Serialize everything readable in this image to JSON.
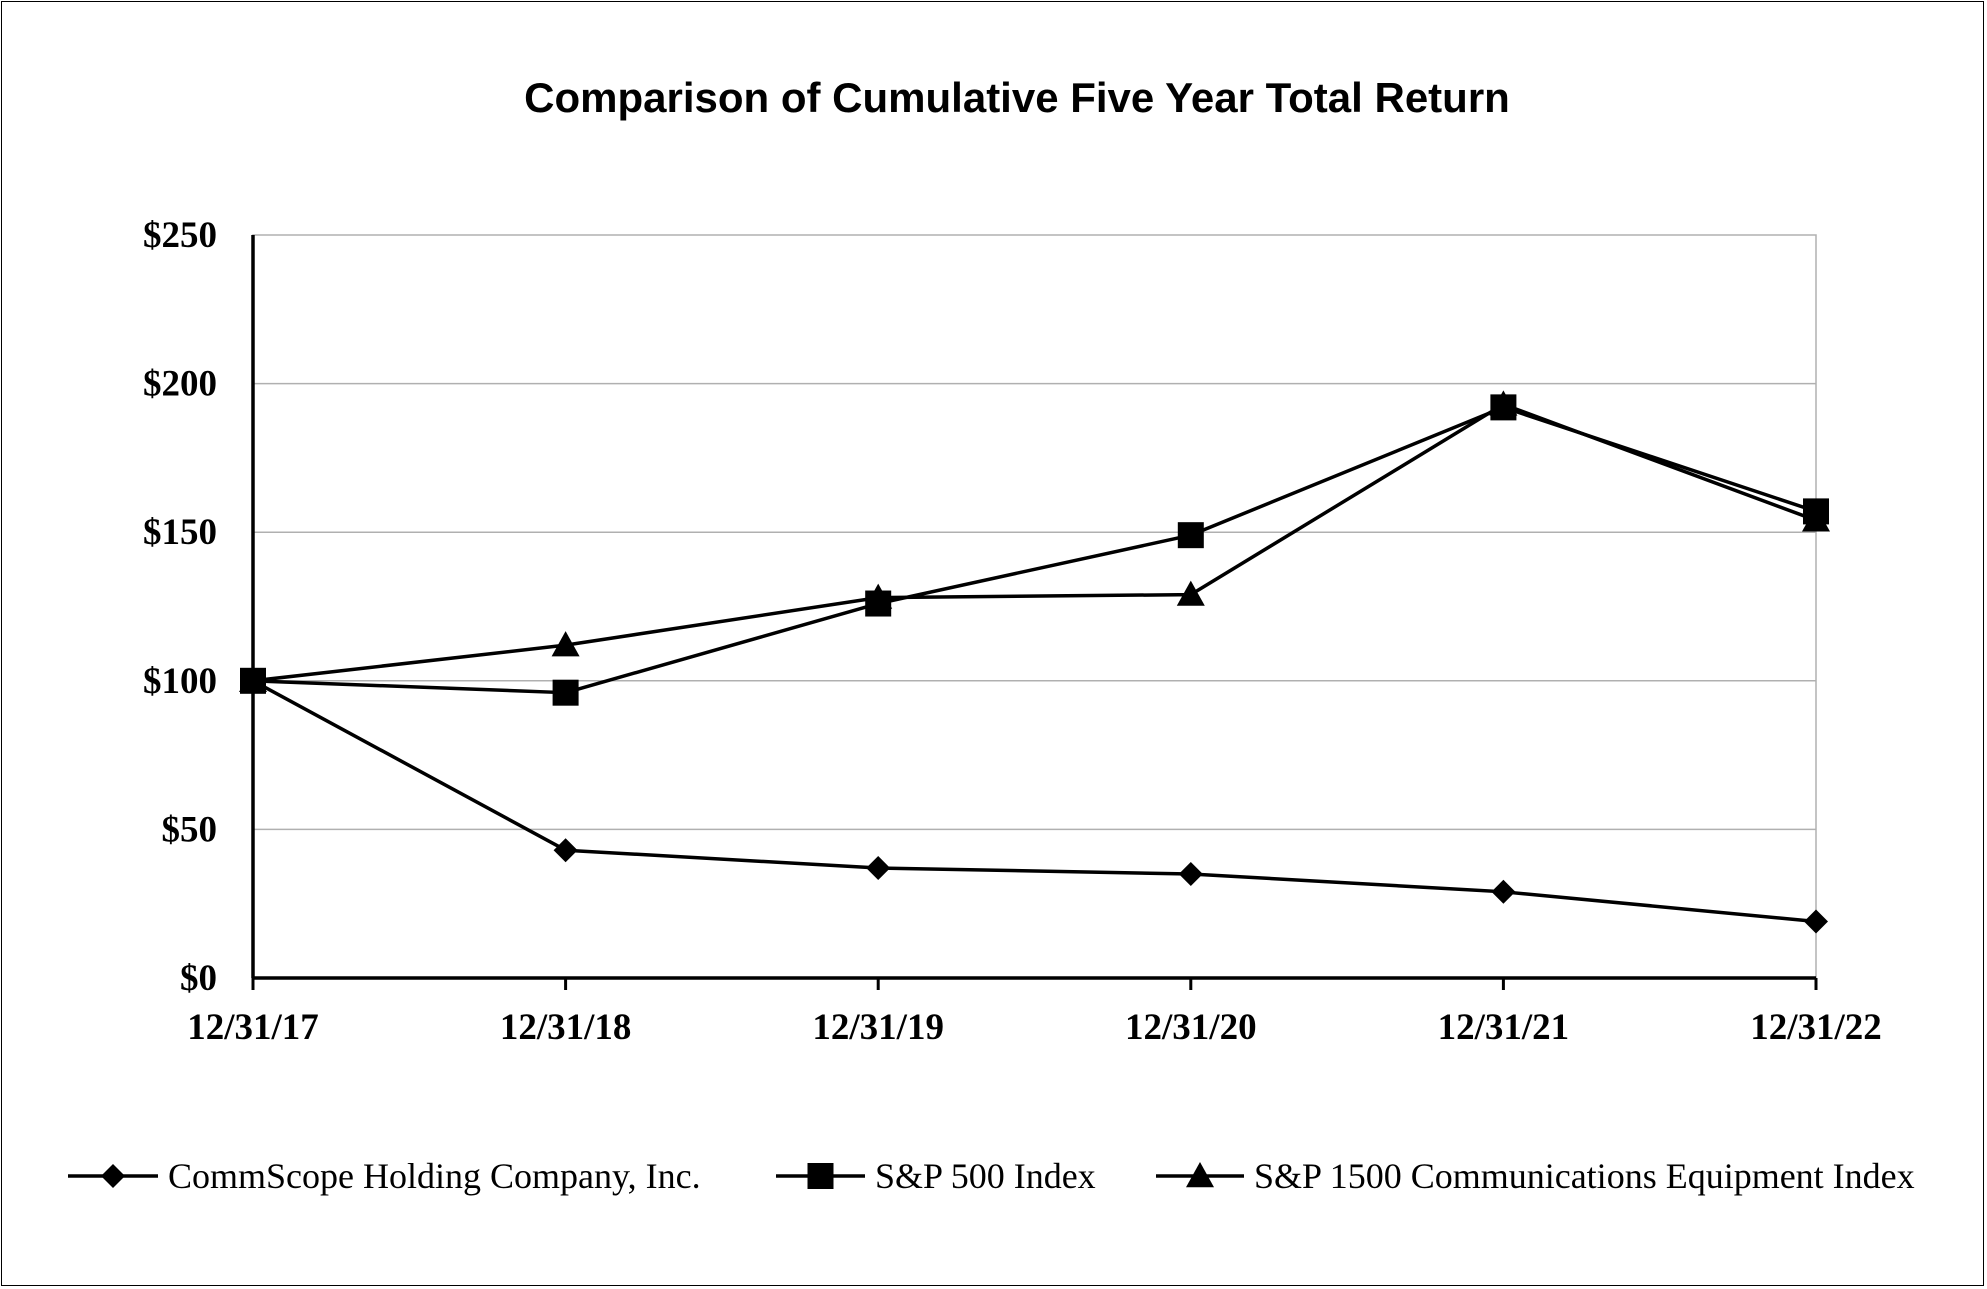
{
  "chart_data": {
    "type": "line",
    "title": "Comparison of Cumulative Five Year Total Return",
    "xlabel": "",
    "ylabel": "",
    "categories": [
      "12/31/17",
      "12/31/18",
      "12/31/19",
      "12/31/20",
      "12/31/21",
      "12/31/22"
    ],
    "y_ticks": [
      "$0",
      "$50",
      "$100",
      "$150",
      "$200",
      "$250"
    ],
    "ylim": [
      0,
      250
    ],
    "grid": true,
    "legend_position": "bottom",
    "series": [
      {
        "name": "CommScope Holding Company, Inc.",
        "marker": "diamond",
        "values": [
          100,
          43,
          37,
          35,
          29,
          19
        ]
      },
      {
        "name": "S&P 500 Index",
        "marker": "square",
        "values": [
          100,
          96,
          126,
          149,
          192,
          157
        ]
      },
      {
        "name": "S&P 1500 Communications Equipment Index",
        "marker": "triangle",
        "values": [
          100,
          112,
          128,
          129,
          193,
          154
        ]
      }
    ],
    "colors": {
      "line": "#000000",
      "grid": "#b0b0b0",
      "background": "#ffffff"
    }
  }
}
